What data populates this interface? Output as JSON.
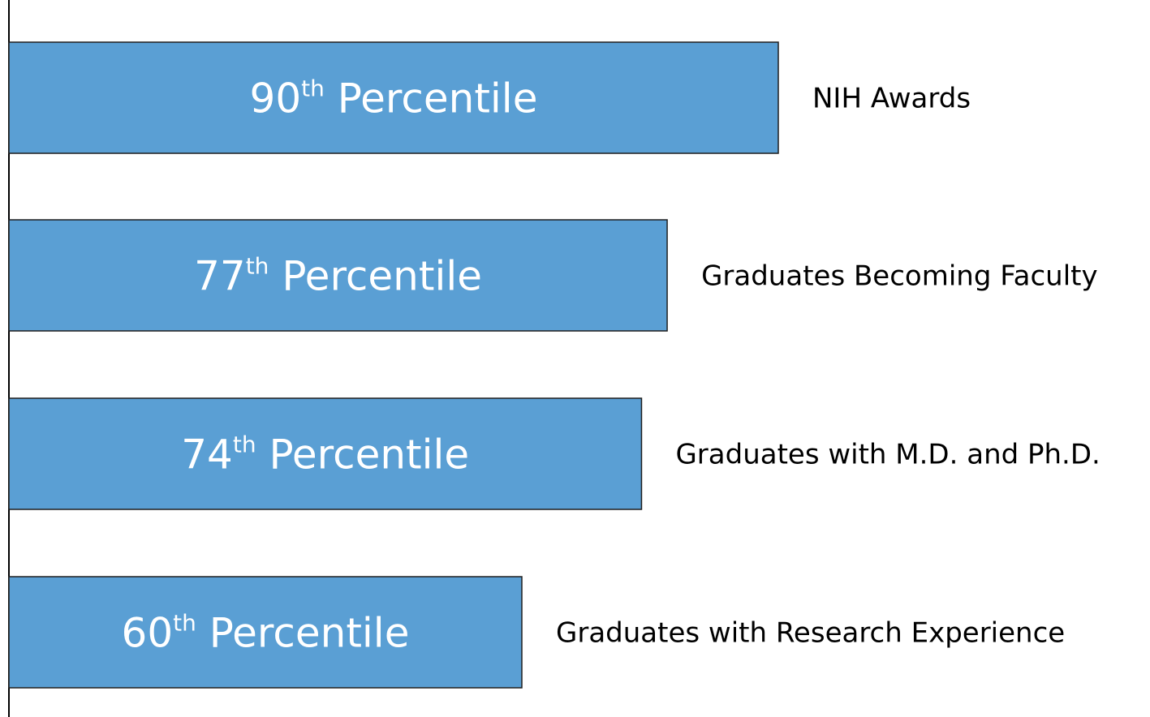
{
  "chart_data": {
    "type": "bar",
    "orientation": "horizontal",
    "categories": [
      "NIH Awards",
      "Graduates Becoming Faculty",
      "Graduates with M.D. and Ph.D.",
      "Graduates with Research Experience"
    ],
    "values": [
      90,
      77,
      74,
      60
    ],
    "value_labels": [
      {
        "number": "90",
        "suffix": "th",
        "word": "Percentile"
      },
      {
        "number": "77",
        "suffix": "th",
        "word": "Percentile"
      },
      {
        "number": "74",
        "suffix": "th",
        "word": "Percentile"
      },
      {
        "number": "60",
        "suffix": "th",
        "word": "Percentile"
      }
    ],
    "title": "",
    "xlabel": "",
    "ylabel": "",
    "grid": false,
    "legend": "none",
    "colors": {
      "bar_fill": "#5a9fd4",
      "bar_stroke": "#1f1f1f",
      "axis": "#000000",
      "bar_text": "#ffffff",
      "category_text": "#000000"
    }
  }
}
